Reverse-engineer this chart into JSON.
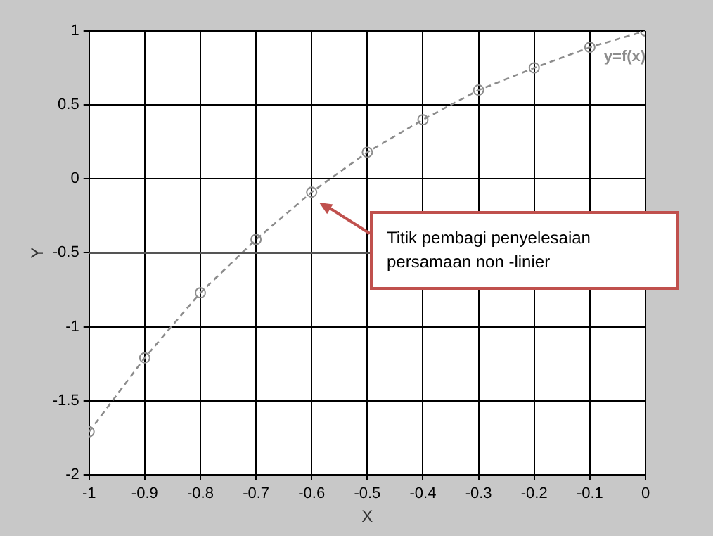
{
  "chart_data": {
    "type": "line",
    "xlabel": "X",
    "ylabel": "Y",
    "x": [
      -1,
      -0.9,
      -0.8,
      -0.7,
      -0.6,
      -0.5,
      -0.4,
      -0.3,
      -0.2,
      -0.1,
      0
    ],
    "series": [
      {
        "name": "y=f(x)",
        "color": "#8c8c8c",
        "values": [
          -1.71,
          -1.21,
          -0.77,
          -0.41,
          -0.09,
          0.18,
          0.4,
          0.6,
          0.75,
          0.89,
          1
        ]
      }
    ],
    "xlim": [
      -1,
      0
    ],
    "xticks": [
      -1,
      -0.9,
      -0.8,
      -0.7,
      -0.6,
      -0.5,
      -0.4,
      -0.3,
      -0.2,
      -0.1,
      0
    ],
    "ylim": [
      -2,
      1
    ],
    "yticks": [
      -2,
      -1.5,
      -1,
      -0.5,
      0,
      0.5,
      1
    ],
    "grid": true,
    "legend": false,
    "marker": "circle",
    "line_style": "dashed",
    "ref_lines": [
      {
        "axis": "y",
        "value": -0.5,
        "color": "#555555"
      }
    ],
    "annotations": [
      "Titik pembagi penyelesaian persamaan non -linier"
    ]
  }
}
